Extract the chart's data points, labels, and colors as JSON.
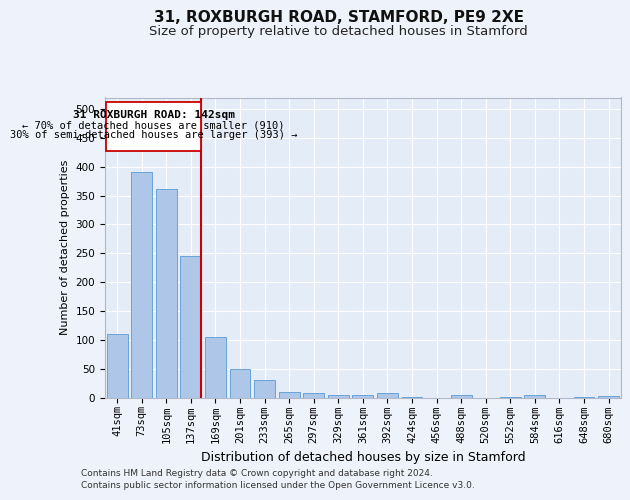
{
  "title1": "31, ROXBURGH ROAD, STAMFORD, PE9 2XE",
  "title2": "Size of property relative to detached houses in Stamford",
  "xlabel": "Distribution of detached houses by size in Stamford",
  "ylabel": "Number of detached properties",
  "categories": [
    "41sqm",
    "73sqm",
    "105sqm",
    "137sqm",
    "169sqm",
    "201sqm",
    "233sqm",
    "265sqm",
    "297sqm",
    "329sqm",
    "361sqm",
    "392sqm",
    "424sqm",
    "456sqm",
    "488sqm",
    "520sqm",
    "552sqm",
    "584sqm",
    "616sqm",
    "648sqm",
    "680sqm"
  ],
  "values": [
    110,
    390,
    362,
    245,
    105,
    50,
    30,
    10,
    8,
    5,
    5,
    7,
    1,
    0,
    4,
    0,
    1,
    4,
    0,
    1,
    3
  ],
  "bar_color": "#aec6e8",
  "bar_edge_color": "#5a9ad4",
  "vline_color": "#cc0000",
  "ylim": [
    0,
    520
  ],
  "yticks": [
    0,
    50,
    100,
    150,
    200,
    250,
    300,
    350,
    400,
    450,
    500
  ],
  "annotation_line1": "31 ROXBURGH ROAD: 142sqm",
  "annotation_line2": "← 70% of detached houses are smaller (910)",
  "annotation_line3": "30% of semi-detached houses are larger (393) →",
  "annotation_box_color": "#cc0000",
  "footer1": "Contains HM Land Registry data © Crown copyright and database right 2024.",
  "footer2": "Contains public sector information licensed under the Open Government Licence v3.0.",
  "bg_color": "#eef2fa",
  "plot_bg_color": "#e4ecf7",
  "grid_color": "#ffffff",
  "title1_fontsize": 11,
  "title2_fontsize": 9.5,
  "xlabel_fontsize": 9,
  "ylabel_fontsize": 8,
  "tick_fontsize": 7.5,
  "footer_fontsize": 6.5,
  "vline_bar_index": 3
}
